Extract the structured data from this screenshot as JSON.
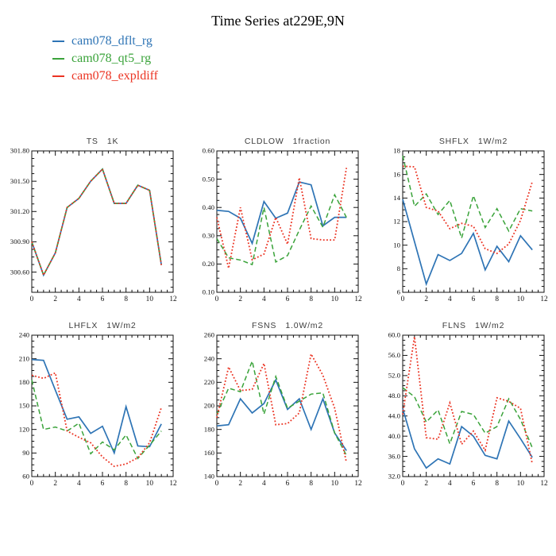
{
  "page": {
    "title": "Time Series at229E,9N"
  },
  "legend": [
    {
      "label": "cam078_dflt_rg",
      "color": "#2e74b5",
      "line_style": "solid"
    },
    {
      "label": "cam078_qt5_rg",
      "color": "#3aa33a",
      "line_style": "dashed"
    },
    {
      "label": "cam078_expldiff",
      "color": "#eb3423",
      "line_style": "dotted"
    }
  ],
  "chart_data": [
    {
      "type": "line",
      "name": "TS",
      "units": "1K",
      "x": [
        0,
        1,
        2,
        3,
        4,
        5,
        6,
        7,
        8,
        9,
        10,
        11
      ],
      "xlim": [
        0,
        12
      ],
      "xticks": [
        0,
        2,
        4,
        6,
        8,
        10,
        12
      ],
      "ylim": [
        300.4,
        301.8
      ],
      "yticks": [
        300.6,
        300.9,
        301.2,
        301.5,
        301.8
      ],
      "ytick_labels": [
        "300.60",
        "300.90",
        "301.20",
        "301.50",
        "301.80"
      ],
      "grid": false,
      "legend_position": "top-left-of-page",
      "series": [
        {
          "name": "cam078_dflt_rg",
          "values": [
            300.9,
            300.57,
            300.79,
            301.24,
            301.33,
            301.5,
            301.62,
            301.28,
            301.28,
            301.46,
            301.41,
            300.67
          ]
        },
        {
          "name": "cam078_qt5_rg",
          "values": [
            300.9,
            300.57,
            300.79,
            301.24,
            301.33,
            301.5,
            301.62,
            301.28,
            301.28,
            301.46,
            301.41,
            300.67
          ]
        },
        {
          "name": "cam078_expldiff",
          "values": [
            300.9,
            300.57,
            300.79,
            301.24,
            301.33,
            301.5,
            301.62,
            301.28,
            301.28,
            301.46,
            301.41,
            300.67
          ]
        }
      ]
    },
    {
      "type": "line",
      "name": "CLDLOW",
      "units": "1fraction",
      "x": [
        0,
        1,
        2,
        3,
        4,
        5,
        6,
        7,
        8,
        9,
        10,
        11
      ],
      "xlim": [
        0,
        12
      ],
      "xticks": [
        0,
        2,
        4,
        6,
        8,
        10,
        12
      ],
      "ylim": [
        0.1,
        0.6
      ],
      "yticks": [
        0.1,
        0.2,
        0.3,
        0.4,
        0.5,
        0.6
      ],
      "ytick_labels": [
        "0.10",
        "0.20",
        "0.30",
        "0.40",
        "0.50",
        "0.60"
      ],
      "grid": false,
      "series": [
        {
          "name": "cam078_dflt_rg",
          "values": [
            0.39,
            0.386,
            0.362,
            0.273,
            0.421,
            0.362,
            0.38,
            0.49,
            0.48,
            0.335,
            0.365,
            0.365
          ]
        },
        {
          "name": "cam078_qt5_rg",
          "values": [
            0.29,
            0.222,
            0.214,
            0.198,
            0.4,
            0.207,
            0.23,
            0.32,
            0.405,
            0.33,
            0.445,
            0.365
          ]
        },
        {
          "name": "cam078_expldiff",
          "values": [
            0.365,
            0.185,
            0.4,
            0.215,
            0.235,
            0.365,
            0.27,
            0.505,
            0.29,
            0.285,
            0.285,
            0.54
          ]
        }
      ]
    },
    {
      "type": "line",
      "name": "SHFLX",
      "units": "1W/m2",
      "x": [
        0,
        1,
        2,
        3,
        4,
        5,
        6,
        7,
        8,
        9,
        10,
        11
      ],
      "xlim": [
        0,
        12
      ],
      "xticks": [
        0,
        2,
        4,
        6,
        8,
        10,
        12
      ],
      "ylim": [
        6,
        18
      ],
      "yticks": [
        6,
        8,
        10,
        12,
        14,
        16,
        18
      ],
      "ytick_labels": [
        "6",
        "8",
        "10",
        "12",
        "14",
        "16",
        "18"
      ],
      "grid": false,
      "series": [
        {
          "name": "cam078_dflt_rg",
          "values": [
            13.9,
            10.3,
            6.7,
            9.2,
            8.7,
            9.3,
            11.0,
            7.9,
            9.9,
            8.6,
            10.8,
            9.6
          ]
        },
        {
          "name": "cam078_qt5_rg",
          "values": [
            17.6,
            13.3,
            14.35,
            12.6,
            13.8,
            10.6,
            14.2,
            11.5,
            13.1,
            11.2,
            13.1,
            12.9
          ]
        },
        {
          "name": "cam078_expldiff",
          "values": [
            16.7,
            16.65,
            13.2,
            12.9,
            11.4,
            11.85,
            11.6,
            9.7,
            9.3,
            10.1,
            12.1,
            15.4
          ]
        }
      ]
    },
    {
      "type": "line",
      "name": "LHFLX",
      "units": "1W/m2",
      "x": [
        0,
        1,
        2,
        3,
        4,
        5,
        6,
        7,
        8,
        9,
        10,
        11
      ],
      "xlim": [
        0,
        12
      ],
      "xticks": [
        0,
        2,
        4,
        6,
        8,
        10,
        12
      ],
      "ylim": [
        60,
        240
      ],
      "yticks": [
        60,
        90,
        120,
        150,
        180,
        210,
        240
      ],
      "ytick_labels": [
        "60",
        "90",
        "120",
        "150",
        "180",
        "210",
        "240"
      ],
      "grid": false,
      "series": [
        {
          "name": "cam078_dflt_rg",
          "values": [
            209,
            208,
            170,
            133,
            136,
            115,
            124,
            90,
            149,
            99,
            98,
            127
          ]
        },
        {
          "name": "cam078_qt5_rg",
          "values": [
            183,
            120,
            123,
            118,
            128,
            89,
            104,
            94,
            113,
            83,
            100,
            118
          ]
        },
        {
          "name": "cam078_expldiff",
          "values": [
            189,
            185,
            192,
            118,
            110,
            103,
            85,
            73,
            76,
            84,
            103,
            148
          ]
        }
      ]
    },
    {
      "type": "line",
      "name": "FSNS",
      "units": "1.0W/m2",
      "x": [
        0,
        1,
        2,
        3,
        4,
        5,
        6,
        7,
        8,
        9,
        10,
        11
      ],
      "xlim": [
        0,
        12
      ],
      "xticks": [
        0,
        2,
        4,
        6,
        8,
        10,
        12
      ],
      "ylim": [
        140,
        260
      ],
      "yticks": [
        140,
        160,
        180,
        200,
        220,
        240,
        260
      ],
      "ytick_labels": [
        "140",
        "160",
        "180",
        "200",
        "220",
        "240",
        "260"
      ],
      "grid": false,
      "series": [
        {
          "name": "cam078_dflt_rg",
          "values": [
            183,
            184,
            206,
            194,
            202,
            222,
            197,
            206,
            180,
            206,
            177,
            162
          ]
        },
        {
          "name": "cam078_qt5_rg",
          "values": [
            193,
            215,
            212,
            238,
            193,
            225,
            198,
            204,
            210,
            211,
            177,
            158
          ]
        },
        {
          "name": "cam078_expldiff",
          "values": [
            190,
            233,
            213,
            214,
            236,
            184,
            185,
            194,
            244,
            226,
            198,
            152
          ]
        }
      ]
    },
    {
      "type": "line",
      "name": "FLNS",
      "units": "1W/m2",
      "x": [
        0,
        1,
        2,
        3,
        4,
        5,
        6,
        7,
        8,
        9,
        10,
        11
      ],
      "xlim": [
        0,
        12
      ],
      "xticks": [
        0,
        2,
        4,
        6,
        8,
        10,
        12
      ],
      "ylim": [
        32,
        60
      ],
      "yticks": [
        32,
        36,
        40,
        44,
        48,
        52,
        56,
        60
      ],
      "ytick_labels": [
        "32.0",
        "36.0",
        "40.0",
        "44.0",
        "48.0",
        "52.0",
        "56.0",
        "60.0"
      ],
      "grid": false,
      "series": [
        {
          "name": "cam078_dflt_rg",
          "values": [
            45.5,
            37.5,
            33.7,
            35.5,
            34.5,
            41.9,
            40.0,
            36.2,
            35.5,
            43.0,
            39.5,
            35.8
          ]
        },
        {
          "name": "cam078_qt5_rg",
          "values": [
            49.6,
            47.8,
            42.8,
            45.2,
            38.5,
            44.9,
            44.3,
            40.6,
            41.9,
            47.4,
            43.3,
            37.7
          ]
        },
        {
          "name": "cam078_expldiff",
          "values": [
            44.3,
            59.7,
            39.7,
            39.4,
            46.6,
            38.4,
            41.0,
            37.2,
            47.6,
            46.9,
            45.5,
            34.5
          ]
        }
      ]
    }
  ]
}
